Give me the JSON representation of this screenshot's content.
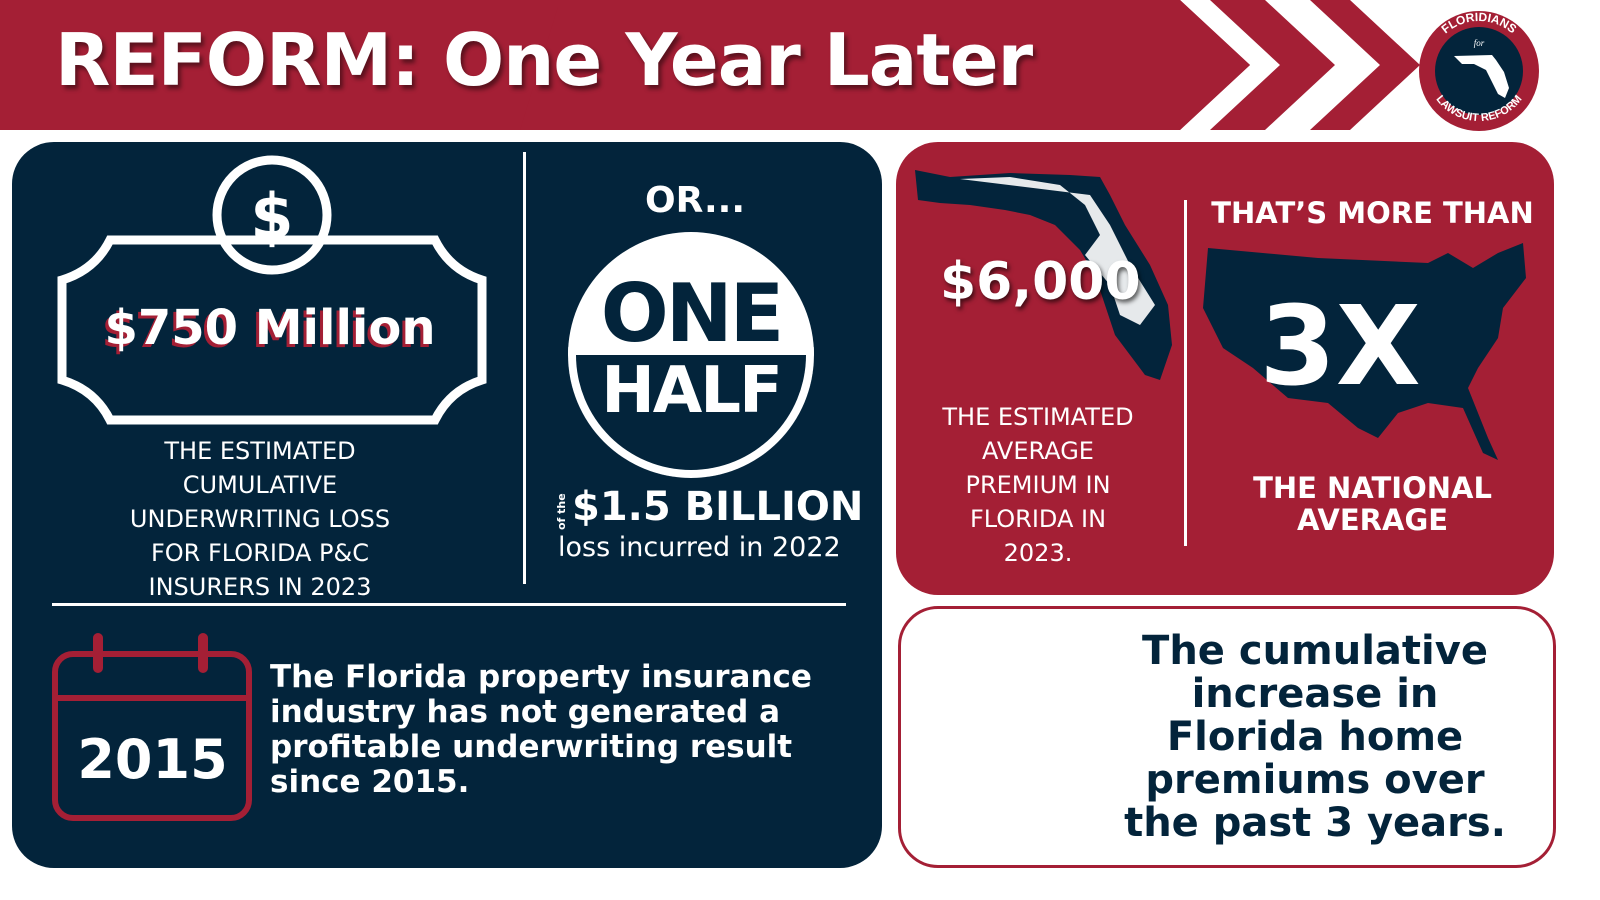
{
  "header": {
    "title": "REFORM: One Year Later"
  },
  "logo": {
    "top_text": "FLORIDIANS",
    "middle_text": "for",
    "bottom_text": "LAWSUIT REFORM"
  },
  "colors": {
    "navy": "#03243b",
    "red": "#a41f35",
    "white": "#ffffff"
  },
  "loss_card": {
    "icon": "dollar-icon",
    "amount": "$750 Million",
    "caption_lines": [
      "THE ESTIMATED",
      "CUMULATIVE",
      "UNDERWRITING LOSS",
      "FOR FLORIDA P&C",
      "INSURERS IN 2023"
    ]
  },
  "half_card": {
    "or_label": "OR...",
    "big_top": "ONE",
    "big_bottom": "HALF",
    "prefix": "of the",
    "amount": "$1.5 BILLION",
    "caption": "loss incurred in 2022"
  },
  "calendar_card": {
    "icon": "calendar-icon",
    "year": "2015",
    "text_lines": [
      "The Florida property insurance",
      "industry has not generated a",
      "profitable underwriting result",
      "since 2015."
    ]
  },
  "premium_card": {
    "amount": "$6,000",
    "caption_lines": [
      "THE ESTIMATED",
      "AVERAGE",
      "PREMIUM IN",
      "FLORIDA IN",
      "2023."
    ]
  },
  "national_card": {
    "heading": "THAT’S MORE THAN",
    "multiplier": "3X",
    "caption_lines": [
      "THE NATIONAL",
      "AVERAGE"
    ]
  },
  "increase_card": {
    "text_lines": [
      "The cumulative",
      "increase in",
      "Florida home",
      "premiums over",
      "the past 3 years."
    ]
  }
}
